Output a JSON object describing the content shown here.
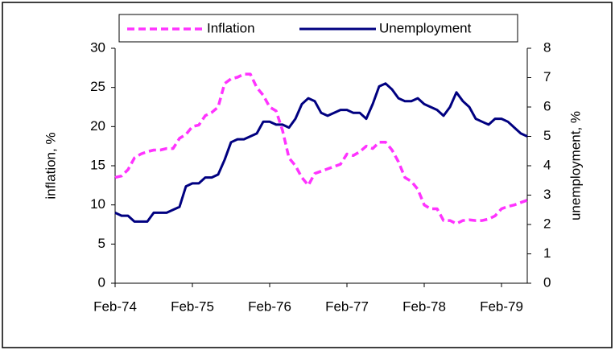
{
  "chart_data": {
    "type": "line",
    "categories": [
      "Feb-74",
      null,
      null,
      null,
      null,
      null,
      null,
      null,
      null,
      null,
      null,
      null,
      "Feb-75",
      null,
      null,
      null,
      null,
      null,
      null,
      null,
      null,
      null,
      null,
      null,
      "Feb-76",
      null,
      null,
      null,
      null,
      null,
      null,
      null,
      null,
      null,
      null,
      null,
      "Feb-77",
      null,
      null,
      null,
      null,
      null,
      null,
      null,
      null,
      null,
      null,
      null,
      "Feb-78",
      null,
      null,
      null,
      null,
      null,
      null,
      null,
      null,
      null,
      null,
      null,
      "Feb-79",
      null,
      null,
      null,
      null
    ],
    "series": [
      {
        "name": "Inflation",
        "color": "#ff33ff",
        "dashed": true,
        "values": [
          13.5,
          13.7,
          14.5,
          16,
          16.5,
          16.8,
          17,
          17,
          17.2,
          17.2,
          18.5,
          19,
          20,
          20.2,
          21.4,
          21.8,
          22.5,
          25.5,
          26.1,
          26.3,
          26.7,
          26.7,
          25,
          24,
          22.5,
          22,
          19.5,
          16,
          15,
          13.5,
          12.5,
          14,
          14.3,
          14.6,
          14.9,
          15.2,
          16.5,
          16.3,
          16.8,
          17.5,
          17.2,
          18,
          18,
          17,
          15.5,
          13.5,
          13,
          12,
          10,
          9.5,
          9.5,
          8,
          8,
          7.6,
          8,
          8.1,
          8,
          8,
          8.2,
          8.6,
          9.5,
          9.8,
          10,
          10.3,
          10.6
        ]
      },
      {
        "name": "Unemployment",
        "color": "#000080",
        "axis": "y2",
        "values": [
          2.4,
          2.3,
          2.3,
          2.1,
          2.1,
          2.1,
          2.4,
          2.4,
          2.4,
          2.5,
          2.6,
          3.3,
          3.4,
          3.4,
          3.6,
          3.6,
          3.7,
          4.2,
          4.8,
          4.9,
          4.9,
          5.0,
          5.1,
          5.5,
          5.5,
          5.4,
          5.4,
          5.3,
          5.6,
          6.1,
          6.3,
          6.2,
          5.8,
          5.7,
          5.8,
          5.9,
          5.9,
          5.8,
          5.8,
          5.6,
          6.1,
          6.7,
          6.8,
          6.6,
          6.3,
          6.2,
          6.2,
          6.3,
          6.1,
          6.0,
          5.9,
          5.7,
          6.0,
          6.5,
          6.2,
          6.0,
          5.6,
          5.5,
          5.4,
          5.6,
          5.6,
          5.5,
          5.3,
          5.1,
          5.0
        ]
      }
    ],
    "ylabel": "inflation, %",
    "y2label": "unemployment, %",
    "ylim": [
      0,
      30
    ],
    "yticks": [
      0,
      5,
      10,
      15,
      20,
      25,
      30
    ],
    "y2lim": [
      0,
      8
    ],
    "y2ticks": [
      0,
      1,
      2,
      3,
      4,
      5,
      6,
      7,
      8
    ],
    "grid": false
  }
}
